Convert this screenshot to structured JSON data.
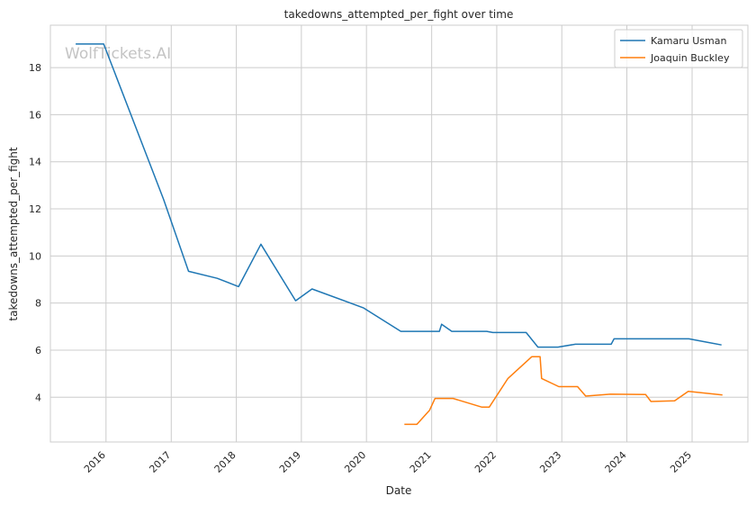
{
  "chart_data": {
    "type": "line",
    "title": "takedowns_attempted_per_fight over time",
    "xlabel": "Date",
    "ylabel": "takedowns_attempted_per_fight",
    "watermark": "WolfTickets.AI",
    "x_ticks": [
      "2016",
      "2017",
      "2018",
      "2019",
      "2020",
      "2021",
      "2022",
      "2023",
      "2024",
      "2025"
    ],
    "y_ticks": [
      "4",
      "6",
      "8",
      "10",
      "12",
      "14",
      "16",
      "18"
    ],
    "xlim": [
      "2015-02-23",
      "2025-11-10"
    ],
    "ylim": [
      2.1,
      19.8
    ],
    "grid": true,
    "legend_position": "top-right",
    "series": [
      {
        "name": "Kamaru Usman",
        "color": "#1f77b4",
        "points": [
          [
            "2015-07-15",
            19.0
          ],
          [
            "2015-12-19",
            19.0
          ],
          [
            "2016-11-19",
            12.4
          ],
          [
            "2017-04-08",
            9.35
          ],
          [
            "2017-09-16",
            9.05
          ],
          [
            "2018-01-14",
            8.7
          ],
          [
            "2018-05-19",
            10.5
          ],
          [
            "2018-11-30",
            8.1
          ],
          [
            "2019-03-02",
            8.6
          ],
          [
            "2019-12-14",
            7.8
          ],
          [
            "2020-07-12",
            6.8
          ],
          [
            "2021-02-13",
            6.8
          ],
          [
            "2021-02-26",
            7.1
          ],
          [
            "2021-04-24",
            6.8
          ],
          [
            "2021-11-06",
            6.8
          ],
          [
            "2021-12-10",
            6.75
          ],
          [
            "2022-06-15",
            6.75
          ],
          [
            "2022-08-20",
            6.13
          ],
          [
            "2022-12-10",
            6.13
          ],
          [
            "2023-03-18",
            6.25
          ],
          [
            "2023-10-05",
            6.25
          ],
          [
            "2023-10-21",
            6.48
          ],
          [
            "2024-12-14",
            6.48
          ],
          [
            "2025-06-15",
            6.22
          ]
        ]
      },
      {
        "name": "Joaquin Buckley",
        "color": "#ff7f0e",
        "points": [
          [
            "2020-08-01",
            2.85
          ],
          [
            "2020-10-10",
            2.85
          ],
          [
            "2020-12-20",
            3.45
          ],
          [
            "2021-01-20",
            3.95
          ],
          [
            "2021-05-01",
            3.95
          ],
          [
            "2021-10-10",
            3.58
          ],
          [
            "2021-11-20",
            3.58
          ],
          [
            "2022-03-05",
            4.8
          ],
          [
            "2022-07-16",
            5.72
          ],
          [
            "2022-09-01",
            5.72
          ],
          [
            "2022-09-10",
            4.8
          ],
          [
            "2022-12-15",
            4.45
          ],
          [
            "2023-03-30",
            4.45
          ],
          [
            "2023-05-15",
            4.05
          ],
          [
            "2023-10-01",
            4.13
          ],
          [
            "2024-04-15",
            4.12
          ],
          [
            "2024-05-15",
            3.82
          ],
          [
            "2024-09-25",
            3.85
          ],
          [
            "2024-12-10",
            4.25
          ],
          [
            "2025-06-20",
            4.1
          ]
        ]
      }
    ]
  }
}
